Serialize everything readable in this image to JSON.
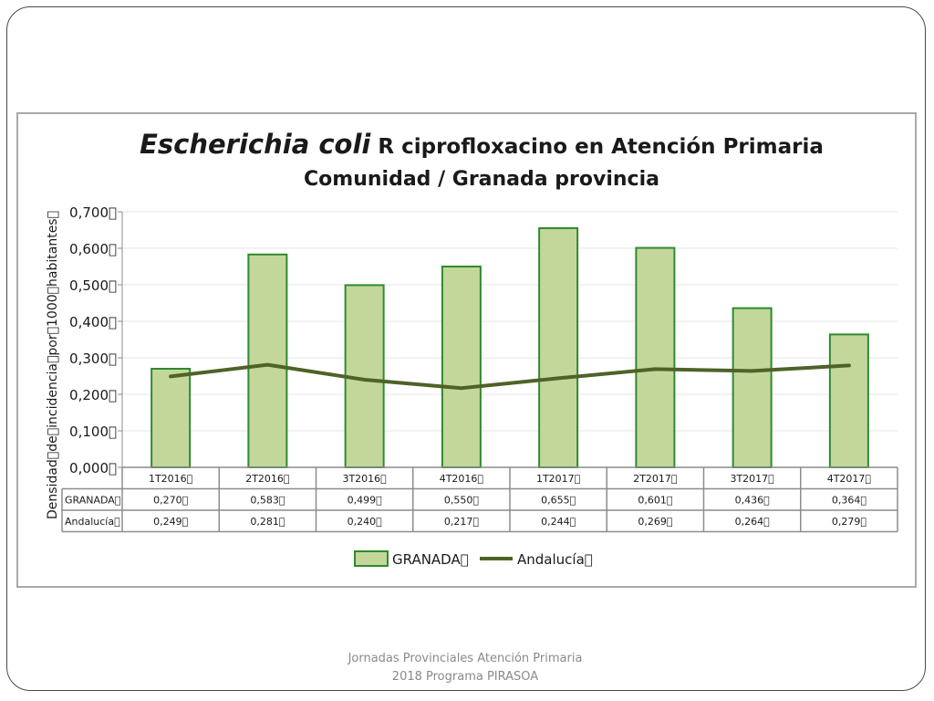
{
  "title": {
    "species": "Escherichia coli",
    "rest": " R ciprofloxacino en Atención Primaria",
    "line2": "Comunidad / Granada provincia"
  },
  "footer": {
    "line1": "Jornadas Provinciales Atención Primaria",
    "line2": "2018  Programa PIRASOA"
  },
  "chart_data": {
    "type": "bar",
    "categories": [
      "1T2016\u0000",
      "2T2016\u0000",
      "3T2016\u0000",
      "4T2016\u0000",
      "1T2017\u0000",
      "2T2017\u0000",
      "3T2017\u0000",
      "4T2017\u0000"
    ],
    "series": [
      {
        "name": "GRANADA\u0000",
        "kind": "bar",
        "values": [
          0.27,
          0.583,
          0.499,
          0.55,
          0.655,
          0.601,
          0.436,
          0.364
        ],
        "labels": [
          "0,270\u0000",
          "0,583\u0000",
          "0,499\u0000",
          "0,550\u0000",
          "0,655\u0000",
          "0,601\u0000",
          "0,436\u0000",
          "0,364\u0000"
        ],
        "fill": "#c4d79b",
        "stroke": "#2e8b2e"
      },
      {
        "name": "Andalucía\u0000",
        "kind": "line",
        "values": [
          0.249,
          0.281,
          0.24,
          0.217,
          0.244,
          0.269,
          0.264,
          0.279
        ],
        "labels": [
          "0,249\u0000",
          "0,281\u0000",
          "0,240\u0000",
          "0,217\u0000",
          "0,244\u0000",
          "0,269\u0000",
          "0,264\u0000",
          "0,279\u0000"
        ],
        "stroke": "#4f6228"
      }
    ],
    "ylabel": "Densidad\u0000de\u0000incidencia\u0000por\u00001000\u0000habitantes\u0000",
    "ylim": [
      0,
      0.7
    ],
    "yticks": [
      0,
      0.1,
      0.2,
      0.3,
      0.4,
      0.5,
      0.6,
      0.7
    ],
    "ytick_labels": [
      "0,000\u0000",
      "0,100\u0000",
      "0,200\u0000",
      "0,300\u0000",
      "0,400\u0000",
      "0,500\u0000",
      "0,600\u0000",
      "0,700\u0000"
    ],
    "grid": true,
    "legend_placement": "bottom",
    "data_table": true
  }
}
